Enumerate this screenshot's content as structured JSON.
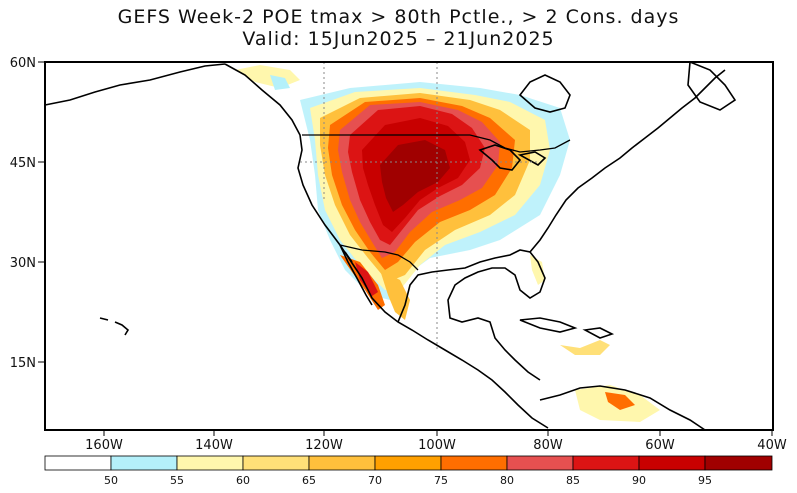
{
  "title": {
    "line1": "GEFS Week-2 POE tmax > 80th Pctle., > 2 Cons. days",
    "line2": "Valid: 15Jun2025 – 21Jun2025"
  },
  "map": {
    "lat_labels": [
      "60N",
      "45N",
      "30N",
      "15N"
    ],
    "lon_labels": [
      "160W",
      "140W",
      "120W",
      "100W",
      "80W",
      "60W",
      "40W"
    ],
    "land_color": "#ffffff",
    "ocean_color": "#ffffff",
    "boundary_color": "#000000"
  },
  "colorbar": {
    "labels": [
      "50",
      "55",
      "60",
      "65",
      "70",
      "75",
      "80",
      "85",
      "90",
      "95"
    ],
    "colors": [
      "#ffffff",
      "#b4f0fa",
      "#fff7ad",
      "#ffe078",
      "#ffc03c",
      "#ffa000",
      "#ff6e00",
      "#e65050",
      "#dc1414",
      "#c80000",
      "#a00000"
    ]
  }
}
